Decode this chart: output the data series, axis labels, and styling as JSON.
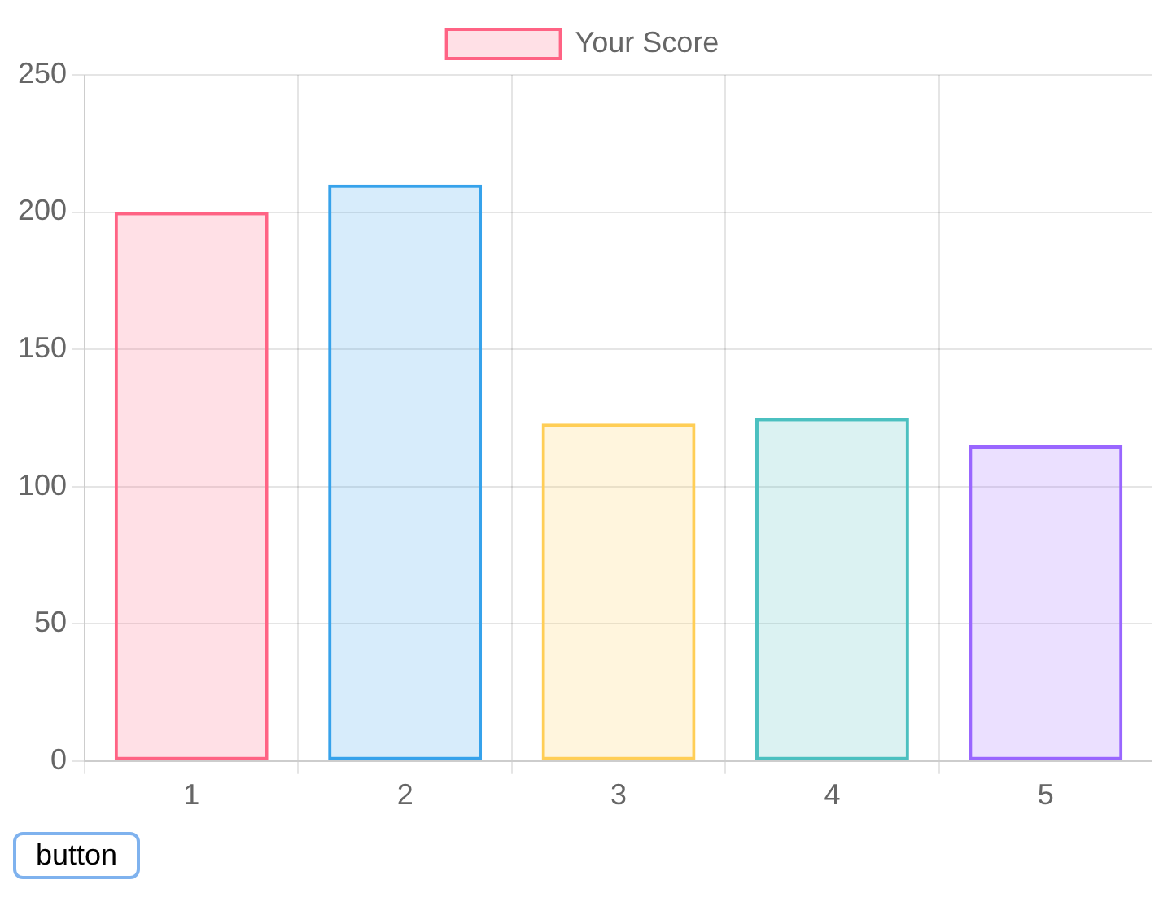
{
  "chart_data": {
    "type": "bar",
    "categories": [
      "1",
      "2",
      "3",
      "4",
      "5"
    ],
    "series": [
      {
        "name": "Your Score",
        "colors": [
          "#ff6384",
          "#36a2eb",
          "#ffce56",
          "#4bc0c0",
          "#9966ff"
        ],
        "values": [
          200,
          210,
          123,
          125,
          115
        ]
      }
    ],
    "ylim": [
      0,
      250
    ],
    "yticks": [
      0,
      50,
      100,
      150,
      200,
      250
    ],
    "grid": true,
    "legend": "top",
    "annotations": [
      "button"
    ]
  }
}
